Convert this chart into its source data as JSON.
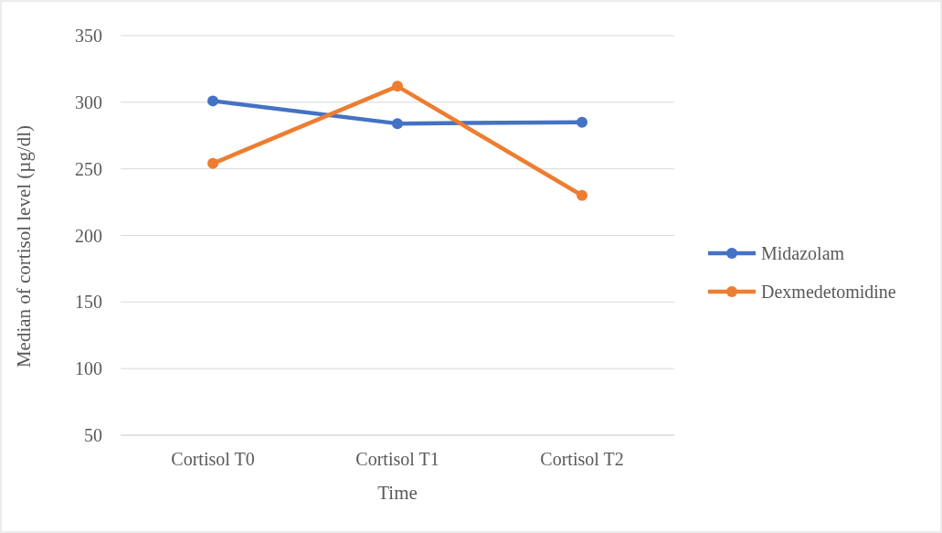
{
  "chart_data": {
    "type": "line",
    "xlabel": "Time",
    "ylabel": "Median of cortisol level (µg/dl)",
    "categories": [
      "Cortisol T0",
      "Cortisol T1",
      "Cortisol T2"
    ],
    "series": [
      {
        "name": "Midazolam",
        "color": "#4472c4",
        "values": [
          301,
          284,
          285
        ]
      },
      {
        "name": "Dexmedetomidine",
        "color": "#ed7d31",
        "values": [
          254,
          312,
          230
        ]
      }
    ],
    "ylim": [
      50,
      350
    ],
    "yticks": [
      50,
      100,
      150,
      200,
      250,
      300,
      350
    ],
    "grid": "y",
    "legend": "right",
    "marker": "circle",
    "line_style": "solid"
  }
}
